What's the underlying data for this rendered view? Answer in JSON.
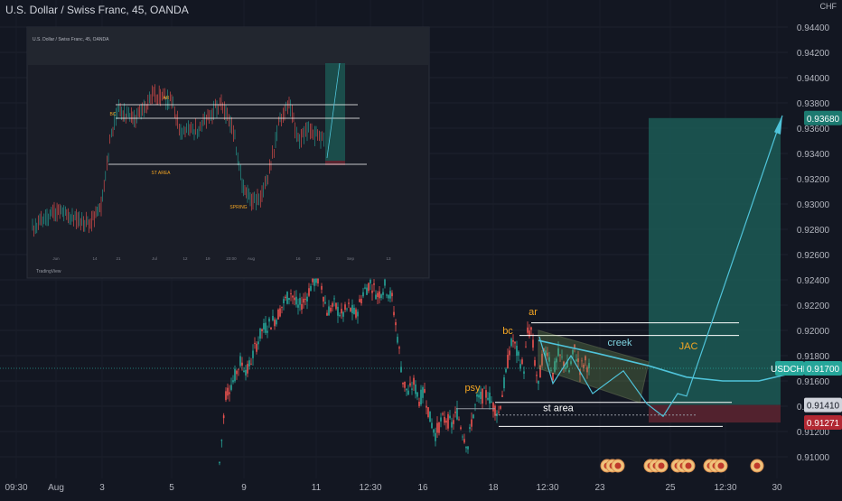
{
  "chart_data": {
    "type": "candlestick",
    "title": "U.S. Dollar / Swiss Franc, 45, OANDA",
    "symbol": "USDCHF",
    "currency_unit": "CHF",
    "y_ticks": [
      "0.94400",
      "0.94200",
      "0.94000",
      "0.93800",
      "0.93600",
      "0.93400",
      "0.93200",
      "0.93000",
      "0.92800",
      "0.92600",
      "0.92400",
      "0.92200",
      "0.92000",
      "0.91800",
      "0.91600",
      "0.91400",
      "0.91200",
      "0.91000"
    ],
    "ylim": [
      0.909,
      0.945
    ],
    "x_ticks": [
      "09:30",
      "Aug",
      "3",
      "5",
      "9",
      "11",
      "12:30",
      "16",
      "18",
      "12:30",
      "23",
      "25",
      "12:30",
      "30"
    ],
    "price_labels": [
      {
        "text": "0.93680",
        "value": 0.9368,
        "kind": "target"
      },
      {
        "text": "USDCHF",
        "value": 0.917,
        "kind": "symbol"
      },
      {
        "text": "0.91700",
        "value": 0.917,
        "kind": "current"
      },
      {
        "text": "0.91410",
        "value": 0.9141,
        "kind": "entry"
      },
      {
        "text": "0.91271",
        "value": 0.91271,
        "kind": "stop"
      }
    ],
    "annotations": [
      {
        "text": "ar",
        "color": "#f5a623"
      },
      {
        "text": "bc",
        "color": "#f5a623"
      },
      {
        "text": "psy",
        "color": "#f5a623"
      },
      {
        "text": "creek",
        "color": "#7fd3e0"
      },
      {
        "text": "JAC",
        "color": "#f5a623"
      },
      {
        "text": "st area",
        "color": "#ffffff"
      }
    ],
    "levels": [
      0.9206,
      0.9196,
      0.9143,
      0.9124
    ],
    "colors": {
      "up": "#26a69a",
      "down": "#ef5350",
      "background": "#131722",
      "grid": "#1f2330",
      "target_zone": "#1c5a55",
      "stop_zone": "#5a2430"
    },
    "inset": {
      "title": "U.S. Dollar / Swiss Franc, 45, OANDA",
      "labels": [
        "AR",
        "BC",
        "ST AREA",
        "SPRING"
      ],
      "x_ticks": [
        "Jun",
        "14",
        "21",
        "Jul",
        "12",
        "19",
        "23:00",
        "Aug",
        "16",
        "23",
        "Sep",
        "13"
      ],
      "footer": "TradingView"
    }
  }
}
